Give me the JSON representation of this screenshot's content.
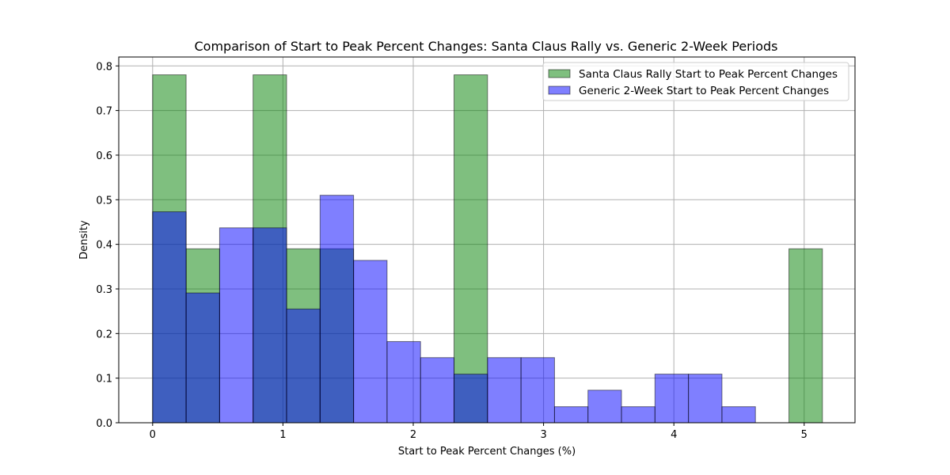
{
  "chart_data": {
    "type": "histogram",
    "title": "Comparison of Start to Peak Percent Changes: Santa Claus Rally vs. Generic 2-Week Periods",
    "xlabel": "Start to Peak Percent Changes (%)",
    "ylabel": "Density",
    "xlim": [
      -0.26,
      5.39
    ],
    "ylim": [
      0,
      0.82
    ],
    "xticks": [
      0,
      1,
      2,
      3,
      4,
      5
    ],
    "yticks": [
      0.0,
      0.1,
      0.2,
      0.3,
      0.4,
      0.5,
      0.6,
      0.7,
      0.8
    ],
    "grid": true,
    "legend_position": "top-right",
    "series": [
      {
        "name": "Santa Claus Rally Start to Peak Percent Changes",
        "color": "#008000",
        "alpha": 0.5,
        "bin_edges": [
          0,
          0.257,
          0.514,
          0.771,
          1.028,
          1.285,
          1.542,
          1.799,
          2.056,
          2.313,
          2.57,
          2.827,
          3.084,
          3.341,
          3.598,
          3.855,
          4.112,
          4.369,
          4.626,
          4.883,
          5.14
        ],
        "values": [
          0.78,
          0.39,
          0.0,
          0.78,
          0.39,
          0.39,
          0.0,
          0.0,
          0.0,
          0.78,
          0.0,
          0.0,
          0.0,
          0.0,
          0.0,
          0.0,
          0.0,
          0.0,
          0.0,
          0.39
        ]
      },
      {
        "name": "Generic 2-Week Start to Peak Percent Changes",
        "color": "#0000ff",
        "alpha": 0.5,
        "bin_edges": [
          0,
          0.257,
          0.514,
          0.771,
          1.028,
          1.285,
          1.542,
          1.799,
          2.056,
          2.313,
          2.57,
          2.827,
          3.084,
          3.341,
          3.598,
          3.855,
          4.112,
          4.369,
          4.626
        ],
        "values": [
          0.473,
          0.291,
          0.437,
          0.437,
          0.255,
          0.51,
          0.364,
          0.182,
          0.146,
          0.109,
          0.146,
          0.146,
          0.036,
          0.073,
          0.036,
          0.109,
          0.109,
          0.036
        ]
      }
    ]
  }
}
